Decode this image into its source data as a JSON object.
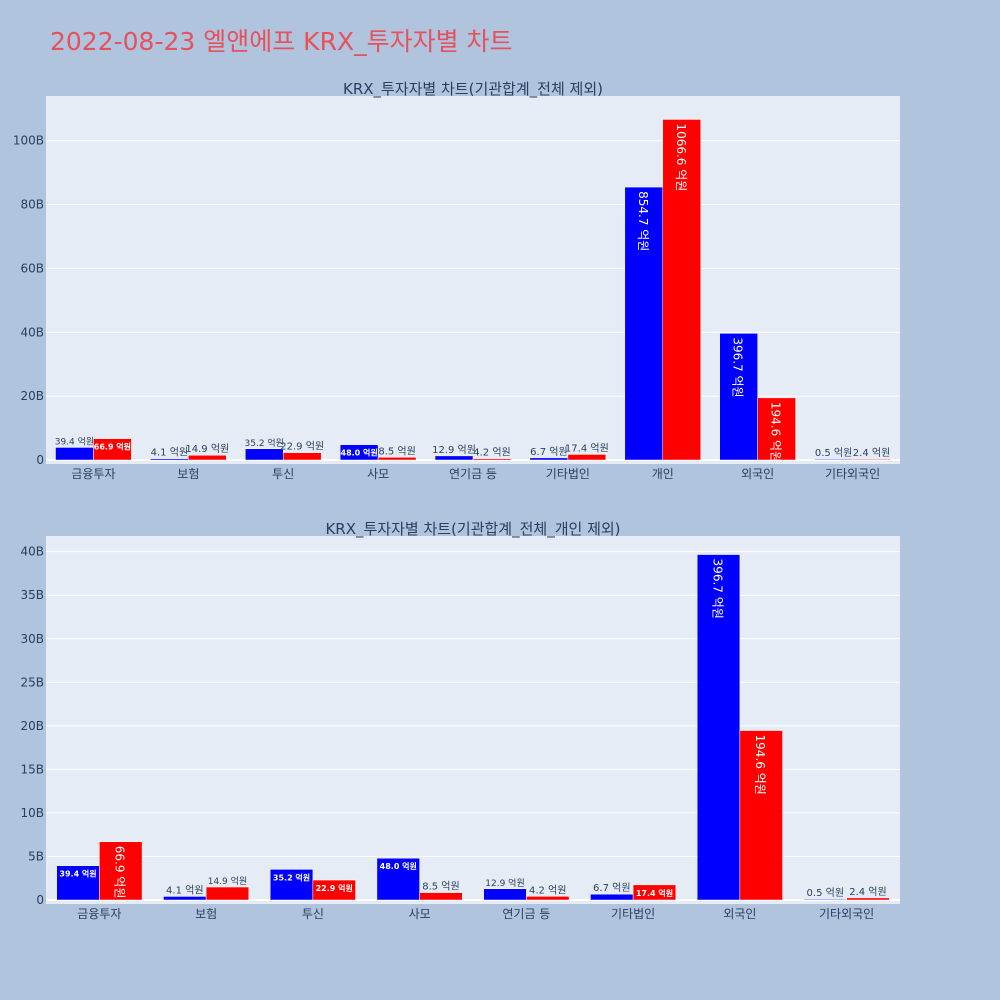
{
  "title": "2022-08-23 엘앤에프 KRX_투자자별 차트",
  "colors": {
    "buy": "#0000ff",
    "sell": "#ff0000",
    "plot_bg": "#e5ecf6",
    "page_bg": "#b0c4de",
    "title": "#e8505b"
  },
  "chart_data": [
    {
      "type": "bar",
      "title": "KRX_투자자별 차트(기관합계_전체 제외)",
      "categories": [
        "금융투자",
        "보험",
        "투신",
        "사모",
        "연기금 등",
        "기타법인",
        "개인",
        "외국인",
        "기타외국인"
      ],
      "series": [
        {
          "values": [
            3940000000,
            410000000,
            3520000000,
            4800000000,
            1290000000,
            670000000,
            85470000000,
            39670000000,
            50000000
          ],
          "labels": [
            "39.4 억원",
            "4.1 억원",
            "35.2 억원",
            "48.0 억원",
            "12.9 억원",
            "6.7 억원",
            "854.7 억원",
            "396.7 억원",
            "0.5 억원"
          ]
        },
        {
          "values": [
            6690000000,
            1490000000,
            2290000000,
            850000000,
            420000000,
            1740000000,
            106660000000,
            19460000000,
            240000000
          ],
          "labels": [
            "66.9 억원",
            "14.9 억원",
            "22.9 억원",
            "8.5 억원",
            "4.2 억원",
            "17.4 억원",
            "1066.6 억원",
            "194.6 억원",
            "2.4 억원"
          ]
        }
      ],
      "y_ticks": [
        0,
        20000000000,
        40000000000,
        60000000000,
        80000000000,
        100000000000
      ],
      "y_tick_labels": [
        "0",
        "20B",
        "40B",
        "60B",
        "80B",
        "100B"
      ],
      "ylim": [
        0,
        114000000000
      ],
      "grid": true,
      "legend": "none"
    },
    {
      "type": "bar",
      "title": "KRX_투자자별 차트(기관합계_전체_개인 제외)",
      "categories": [
        "금융투자",
        "보험",
        "투신",
        "사모",
        "연기금 등",
        "기타법인",
        "외국인",
        "기타외국인"
      ],
      "series": [
        {
          "values": [
            3940000000,
            410000000,
            3520000000,
            4800000000,
            1290000000,
            670000000,
            39670000000,
            50000000
          ],
          "labels": [
            "39.4 억원",
            "4.1 억원",
            "35.2 억원",
            "48.0 억원",
            "12.9 억원",
            "6.7 억원",
            "396.7 억원",
            "0.5 억원"
          ]
        },
        {
          "values": [
            6690000000,
            1490000000,
            2290000000,
            850000000,
            420000000,
            1740000000,
            19460000000,
            240000000
          ],
          "labels": [
            "66.9 억원",
            "14.9 억원",
            "22.9 억원",
            "8.5 억원",
            "4.2 억원",
            "17.4 억원",
            "194.6 억원",
            "2.4 억원"
          ]
        }
      ],
      "y_ticks": [
        0,
        5000000000,
        10000000000,
        15000000000,
        20000000000,
        25000000000,
        30000000000,
        35000000000,
        40000000000
      ],
      "y_tick_labels": [
        "0",
        "5B",
        "10B",
        "15B",
        "20B",
        "25B",
        "30B",
        "35B",
        "40B"
      ],
      "ylim": [
        0,
        41800000000
      ],
      "grid": true,
      "legend": "none"
    }
  ]
}
